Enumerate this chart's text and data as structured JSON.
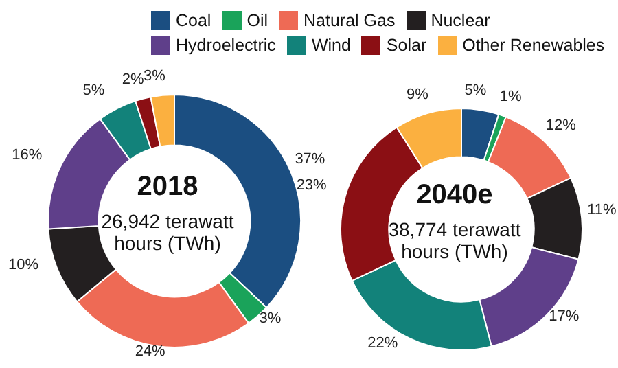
{
  "chart_data": {
    "type": "donut",
    "categories": [
      "Coal",
      "Oil",
      "Natural Gas",
      "Nuclear",
      "Hydroelectric",
      "Wind",
      "Solar",
      "Other Renewables"
    ],
    "colors": [
      "#1b4e81",
      "#1aa35a",
      "#ee6a55",
      "#231f20",
      "#5f3f8a",
      "#12827a",
      "#8b0f14",
      "#fbb040"
    ],
    "legend": "top",
    "series": [
      {
        "name": "2018",
        "values": [
          37,
          3,
          24,
          10,
          16,
          5,
          2,
          3
        ],
        "value_labels": [
          "37%",
          "3%",
          "24%",
          "10%",
          "16%",
          "5%",
          "2%",
          "3%"
        ]
      },
      {
        "name": "2040e",
        "values": [
          5,
          1,
          12,
          11,
          17,
          22,
          23,
          9
        ],
        "value_labels": [
          "5%",
          "1%",
          "12%",
          "11%",
          "17%",
          "22%",
          "23%",
          "9%"
        ]
      }
    ],
    "annotations": [
      "26,942 terawatt hours (TWh)",
      "38,774 terawatt hours (TWh)"
    ]
  }
}
